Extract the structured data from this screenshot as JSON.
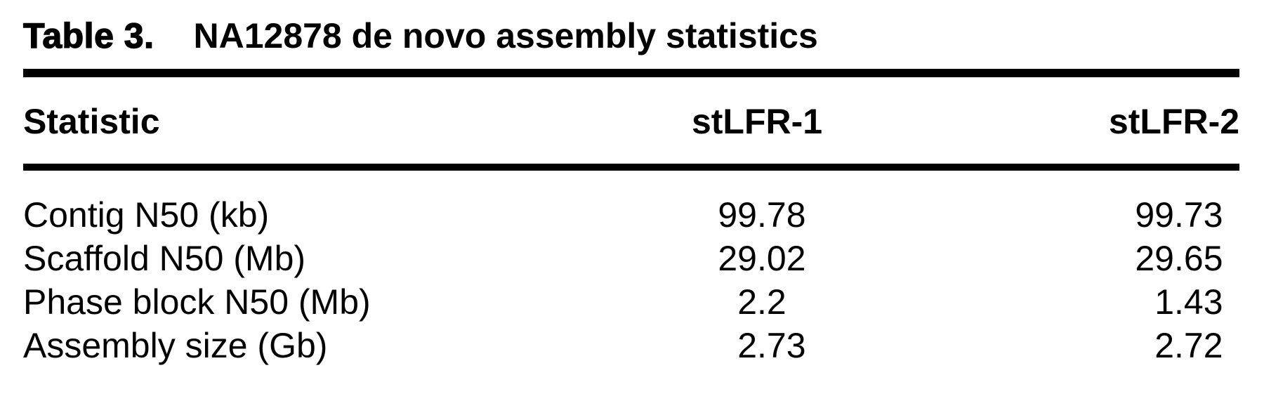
{
  "table": {
    "title_label": "Table 3.",
    "title_text": "NA12878 de novo assembly statistics",
    "columns": [
      "Statistic",
      "stLFR-1",
      "stLFR-2"
    ],
    "rows": [
      {
        "statistic": "Contig N50 (kb)",
        "stlfr1": "99.78",
        "stlfr2": "99.73"
      },
      {
        "statistic": "Scaffold N50 (Mb)",
        "stlfr1": "29.02",
        "stlfr2": "29.65"
      },
      {
        "statistic": "Phase block N50 (Mb)",
        "stlfr1": "2.2",
        "stlfr2": "1.43"
      },
      {
        "statistic": "Assembly size (Gb)",
        "stlfr1": "2.73",
        "stlfr2": "2.72"
      }
    ]
  }
}
